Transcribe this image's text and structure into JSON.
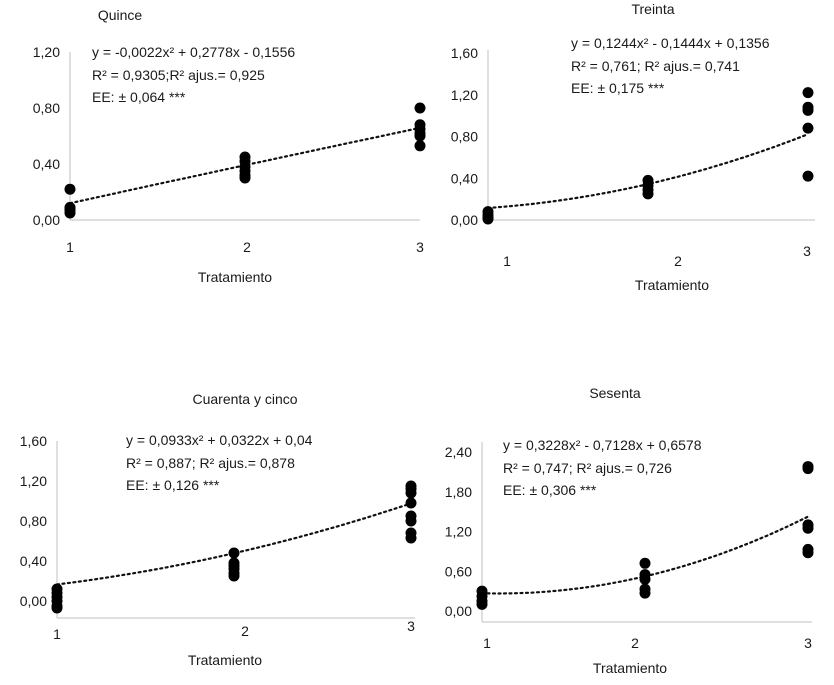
{
  "chart_data": [
    {
      "type": "scatter",
      "title": "Quince",
      "xlabel": "Tratamiento",
      "ylabel": "",
      "x_ticks": [
        "1",
        "2",
        "3"
      ],
      "y_ticks": [
        "0,00",
        "0,40",
        "0,80",
        "1,20"
      ],
      "ylim": [
        0,
        1.2
      ],
      "equation": "y = -0,0022x² + 0,2778x - 0,1556",
      "r2": "R² = 0,9305;R² ajus.= 0,925",
      "ee": "EE: ± 0,064 ***",
      "trend": {
        "a": -0.0022,
        "b": 0.2778,
        "c": -0.1556,
        "style": "dotted"
      },
      "points": [
        {
          "x": 1,
          "y": 0.22
        },
        {
          "x": 1,
          "y": 0.09
        },
        {
          "x": 1,
          "y": 0.08
        },
        {
          "x": 1,
          "y": 0.07
        },
        {
          "x": 1,
          "y": 0.05
        },
        {
          "x": 2,
          "y": 0.45
        },
        {
          "x": 2,
          "y": 0.42
        },
        {
          "x": 2,
          "y": 0.38
        },
        {
          "x": 2,
          "y": 0.35
        },
        {
          "x": 2,
          "y": 0.32
        },
        {
          "x": 2,
          "y": 0.3
        },
        {
          "x": 3,
          "y": 0.8
        },
        {
          "x": 3,
          "y": 0.68
        },
        {
          "x": 3,
          "y": 0.65
        },
        {
          "x": 3,
          "y": 0.62
        },
        {
          "x": 3,
          "y": 0.6
        },
        {
          "x": 3,
          "y": 0.53
        }
      ]
    },
    {
      "type": "scatter",
      "title": "Treinta",
      "xlabel": "Tratamiento",
      "ylabel": "",
      "x_ticks": [
        "1",
        "2",
        "3"
      ],
      "y_ticks": [
        "0,00",
        "0,40",
        "0,80",
        "1,20",
        "1,60"
      ],
      "ylim": [
        0,
        1.6
      ],
      "equation": "y = 0,1244x² - 0,1444x + 0,1356",
      "r2": "R² = 0,761; R² ajus.= 0,741",
      "ee": "EE: ± 0,175 ***",
      "trend": {
        "a": 0.1244,
        "b": -0.1444,
        "c": 0.1356,
        "style": "dotted"
      },
      "points": [
        {
          "x": 1,
          "y": 0.08
        },
        {
          "x": 1,
          "y": 0.05
        },
        {
          "x": 1,
          "y": 0.03
        },
        {
          "x": 1,
          "y": 0.01
        },
        {
          "x": 2,
          "y": 0.38
        },
        {
          "x": 2,
          "y": 0.33
        },
        {
          "x": 2,
          "y": 0.29
        },
        {
          "x": 2,
          "y": 0.25
        },
        {
          "x": 3,
          "y": 1.22
        },
        {
          "x": 3,
          "y": 1.08
        },
        {
          "x": 3,
          "y": 1.05
        },
        {
          "x": 3,
          "y": 0.88
        },
        {
          "x": 3,
          "y": 0.42
        }
      ]
    },
    {
      "type": "scatter",
      "title": "Cuarenta y cinco",
      "xlabel": "Tratamiento",
      "ylabel": "",
      "x_ticks": [
        "1",
        "2",
        "3"
      ],
      "y_ticks": [
        "0,00",
        "0,40",
        "0,80",
        "1,20",
        "1,60"
      ],
      "ylim": [
        0,
        1.6
      ],
      "equation": "y = 0,0933x² + 0,0322x + 0,04",
      "r2": "R² = 0,887; R² ajus.= 0,878",
      "ee": "EE: ± 0,126 ***",
      "trend": {
        "a": 0.0933,
        "b": 0.0322,
        "c": 0.04,
        "style": "dotted"
      },
      "points": [
        {
          "x": 1,
          "y": 0.12
        },
        {
          "x": 1,
          "y": 0.08
        },
        {
          "x": 1,
          "y": 0.04
        },
        {
          "x": 1,
          "y": 0.0
        },
        {
          "x": 1,
          "y": -0.05
        },
        {
          "x": 1,
          "y": -0.07
        },
        {
          "x": 2,
          "y": 0.48
        },
        {
          "x": 2,
          "y": 0.38
        },
        {
          "x": 2,
          "y": 0.35
        },
        {
          "x": 2,
          "y": 0.32
        },
        {
          "x": 2,
          "y": 0.28
        },
        {
          "x": 2,
          "y": 0.25
        },
        {
          "x": 3,
          "y": 1.15
        },
        {
          "x": 3,
          "y": 1.12
        },
        {
          "x": 3,
          "y": 1.08
        },
        {
          "x": 3,
          "y": 0.98
        },
        {
          "x": 3,
          "y": 0.85
        },
        {
          "x": 3,
          "y": 0.8
        },
        {
          "x": 3,
          "y": 0.68
        },
        {
          "x": 3,
          "y": 0.63
        }
      ]
    },
    {
      "type": "scatter",
      "title": "Sesenta",
      "xlabel": "Tratamiento",
      "ylabel": "",
      "x_ticks": [
        "1",
        "2",
        "3"
      ],
      "y_ticks": [
        "0,00",
        "0,60",
        "1,20",
        "1,80",
        "2,40"
      ],
      "ylim": [
        0,
        2.4
      ],
      "equation": "y = 0,3228x² - 0,7128x + 0,6578",
      "r2": "R² = 0,747; R² ajus.= 0,726",
      "ee": "EE: ± 0,306 ***",
      "trend": {
        "a": 0.3228,
        "b": -0.7128,
        "c": 0.6578,
        "style": "dotted"
      },
      "points": [
        {
          "x": 1,
          "y": 0.3
        },
        {
          "x": 1,
          "y": 0.22
        },
        {
          "x": 1,
          "y": 0.15
        },
        {
          "x": 1,
          "y": 0.1
        },
        {
          "x": 2,
          "y": 0.72
        },
        {
          "x": 2,
          "y": 0.55
        },
        {
          "x": 2,
          "y": 0.48
        },
        {
          "x": 2,
          "y": 0.33
        },
        {
          "x": 2,
          "y": 0.27
        },
        {
          "x": 3,
          "y": 2.18
        },
        {
          "x": 3,
          "y": 2.15
        },
        {
          "x": 3,
          "y": 1.3
        },
        {
          "x": 3,
          "y": 1.25
        },
        {
          "x": 3,
          "y": 0.93
        },
        {
          "x": 3,
          "y": 0.88
        }
      ]
    }
  ]
}
